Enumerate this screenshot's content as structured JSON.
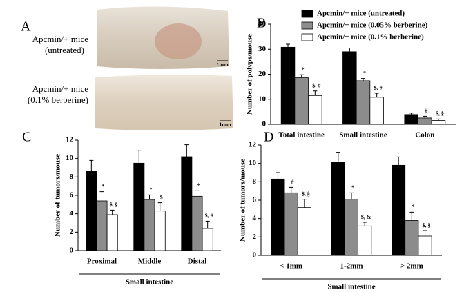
{
  "panel_a": {
    "label": "A",
    "images": [
      {
        "caption": [
          "Apcmin/+ mice",
          "(untreated)"
        ],
        "scale": "1mm"
      },
      {
        "caption": [
          "Apcmin/+ mice",
          "(0.1% berberine)"
        ],
        "scale": "1mm"
      }
    ]
  },
  "chart_data": [
    {
      "type": "bar",
      "label": "B",
      "ylabel": "Number of polyps/mouse",
      "categories": [
        "Total intestine",
        "Small intestine",
        "Colon"
      ],
      "ylim": [
        0,
        40
      ],
      "yticks": [
        0,
        10,
        20,
        30,
        40
      ],
      "legend": "top-right",
      "series": [
        {
          "name": "Apcmin/+ mice (untreated)",
          "color": "#000000",
          "values": [
            30.8,
            29.0,
            3.9
          ],
          "errors": [
            1.2,
            1.5,
            0.6
          ],
          "annotations": [
            null,
            null,
            null
          ]
        },
        {
          "name": "Apcmin/+ mice (0.05% berberine)",
          "color": "#8c8c8c",
          "values": [
            18.6,
            17.4,
            2.5
          ],
          "errors": [
            1.2,
            0.9,
            0.7
          ],
          "annotations": [
            "*",
            "*",
            "#"
          ]
        },
        {
          "name": "Apcmin/+ mice (0.1% berberine)",
          "color": "#ffffff",
          "values": [
            11.5,
            10.8,
            1.5
          ],
          "errors": [
            1.8,
            1.6,
            0.6
          ],
          "annotations": [
            "$, #",
            "$, #",
            "$, §"
          ]
        }
      ]
    },
    {
      "type": "bar",
      "label": "C",
      "ylabel": "Number of tumors/mouse",
      "xlabel": "Small intestine",
      "categories": [
        "Proximal",
        "Middle",
        "Distal"
      ],
      "ylim": [
        0,
        12
      ],
      "yticks": [
        0,
        2,
        4,
        6,
        8,
        10,
        12
      ],
      "series": [
        {
          "color": "#000000",
          "values": [
            8.6,
            9.5,
            10.2
          ],
          "errors": [
            1.2,
            1.4,
            1.3
          ],
          "annotations": [
            null,
            null,
            null
          ]
        },
        {
          "color": "#8c8c8c",
          "values": [
            5.4,
            5.55,
            5.9
          ],
          "errors": [
            1.0,
            0.5,
            0.6
          ],
          "annotations": [
            "*",
            "*",
            "*"
          ]
        },
        {
          "color": "#ffffff",
          "values": [
            3.9,
            4.3,
            2.4
          ],
          "errors": [
            0.5,
            0.9,
            0.8
          ],
          "annotations": [
            "$, §",
            "$",
            "$, #"
          ]
        }
      ]
    },
    {
      "type": "bar",
      "label": "D",
      "ylabel": "Number of tumors/mouse",
      "xlabel": "Small intestine",
      "categories": [
        "< 1mm",
        "1-2mm",
        "> 2mm"
      ],
      "ylim": [
        0,
        12
      ],
      "yticks": [
        0,
        2,
        4,
        6,
        8,
        10,
        12
      ],
      "series": [
        {
          "color": "#000000",
          "values": [
            8.3,
            10.1,
            9.8
          ],
          "errors": [
            0.7,
            1.1,
            0.9
          ],
          "annotations": [
            null,
            null,
            null
          ]
        },
        {
          "color": "#8c8c8c",
          "values": [
            6.8,
            6.1,
            3.8
          ],
          "errors": [
            0.6,
            0.7,
            0.9
          ],
          "annotations": [
            "#",
            "*",
            "*"
          ]
        },
        {
          "color": "#ffffff",
          "values": [
            5.2,
            3.2,
            2.1
          ],
          "errors": [
            0.9,
            0.4,
            0.6
          ],
          "annotations": [
            "$, §",
            "$, &",
            "$, §"
          ]
        }
      ]
    }
  ]
}
